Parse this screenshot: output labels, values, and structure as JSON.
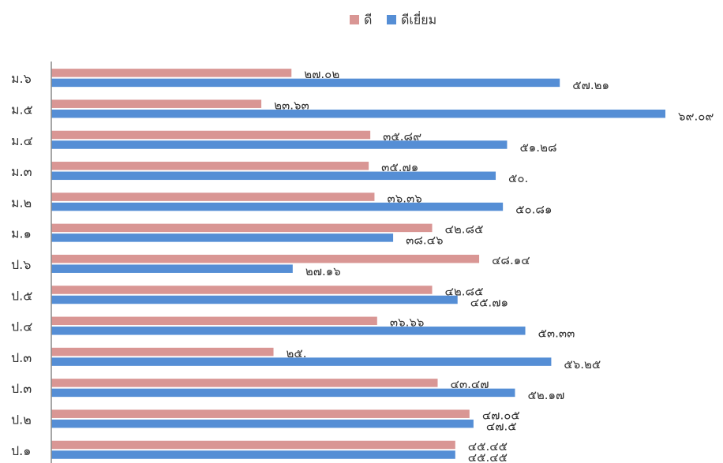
{
  "chart_data": {
    "type": "hbar",
    "categories": [
      "ม.๖",
      "ม.๕",
      "ม.๔",
      "ม.๓",
      "ม.๒",
      "ม.๑",
      "ป.๖",
      "ป.๕",
      "ป.๔",
      "ป.๓",
      "ป.๓",
      "ป.๒",
      "ป.๑"
    ],
    "series": [
      {
        "name": "ดี",
        "color": "#d99694",
        "values": [
          27.02,
          23.63,
          35.89,
          35.71,
          36.36,
          42.85,
          48.14,
          42.85,
          36.66,
          25,
          43.47,
          47.05,
          45.45
        ],
        "value_labels": [
          "๒๗.๐๒",
          "๒๓.๖๓",
          "๓๕.๘๙",
          "๓๕.๗๑",
          "๓๖.๓๖",
          "๔๒.๘๕",
          "๔๘.๑๔",
          "๔๒.๘๕",
          "๓๖.๖๖",
          "๒๕.",
          "๔๓.๔๗",
          "๔๗.๐๕",
          "๔๕.๔๕"
        ]
      },
      {
        "name": "ดีเยี่ยม",
        "color": "#558ed5",
        "values": [
          57.21,
          69.09,
          51.28,
          50,
          50.81,
          38.46,
          27.16,
          45.71,
          53.33,
          56.25,
          52.17,
          47.5,
          45.45
        ],
        "value_labels": [
          "๕๗.๒๑",
          "๖๙.๐๙",
          "๕๑.๒๘",
          "๕๐.",
          "๕๐.๘๑",
          "๓๘.๔๖",
          "๒๗.๑๖",
          "๔๕.๗๑",
          "๕๓.๓๓",
          "๕๖.๒๕",
          "๕๒.๑๗",
          "๔๗.๕",
          "๔๕.๔๕"
        ]
      }
    ],
    "legend": "top"
  }
}
